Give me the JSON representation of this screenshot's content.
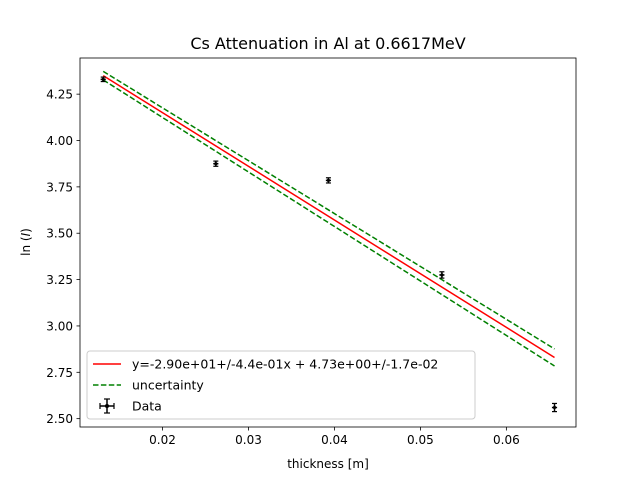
{
  "chart_data": {
    "type": "scatter",
    "title": "Cs Attenuation in Al at 0.6617MeV",
    "xlabel": "thickness [m]",
    "ylabel_prefix": "ln (",
    "ylabel_var": "I",
    "ylabel_suffix": ")",
    "xlim": [
      0.0104,
      0.0681
    ],
    "ylim": [
      2.455,
      4.445
    ],
    "xticks": [
      0.02,
      0.03,
      0.04,
      0.05,
      0.06
    ],
    "xtick_labels": [
      "0.02",
      "0.03",
      "0.04",
      "0.05",
      "0.06"
    ],
    "yticks": [
      2.5,
      2.75,
      3.0,
      3.25,
      3.5,
      3.75,
      4.0,
      4.25
    ],
    "ytick_labels": [
      "2.50",
      "2.75",
      "3.00",
      "3.25",
      "3.50",
      "3.75",
      "4.00",
      "4.25"
    ],
    "grid": false,
    "legend_position": "lower-left",
    "series": [
      {
        "name": "Data",
        "kind": "errorbar",
        "color": "#000000",
        "x": [
          0.0131,
          0.0262,
          0.0393,
          0.0525,
          0.0656
        ],
        "y": [
          4.33,
          3.875,
          3.785,
          3.275,
          2.56
        ],
        "xerr": [
          0.0003,
          0.0003,
          0.0003,
          0.0003,
          0.0003
        ],
        "yerr": [
          0.012,
          0.014,
          0.014,
          0.017,
          0.022
        ]
      },
      {
        "name": "y=-2.90e+01+/-4.4e-01x + 4.73e+00+/-1.7e-02",
        "kind": "line",
        "color": "#ff0000",
        "style": "solid",
        "x": [
          0.0131,
          0.0656
        ],
        "y": [
          4.35,
          2.83
        ]
      },
      {
        "name": "uncertainty",
        "kind": "line",
        "color": "#008000",
        "style": "dashed",
        "x": [
          0.0131,
          0.0656
        ],
        "y": [
          4.373,
          2.876
        ]
      },
      {
        "name": "",
        "kind": "line",
        "color": "#008000",
        "style": "dashed",
        "legend": false,
        "x": [
          0.0131,
          0.0656
        ],
        "y": [
          4.327,
          2.784
        ]
      }
    ],
    "legend_entries": [
      {
        "label": "y=-2.90e+01+/-4.4e-01x + 4.73e+00+/-1.7e-02",
        "kind": "line",
        "color": "#ff0000",
        "style": "solid"
      },
      {
        "label": "uncertainty",
        "kind": "line",
        "color": "#008000",
        "style": "dashed"
      },
      {
        "label": "Data",
        "kind": "errorbar",
        "color": "#000000"
      }
    ]
  }
}
